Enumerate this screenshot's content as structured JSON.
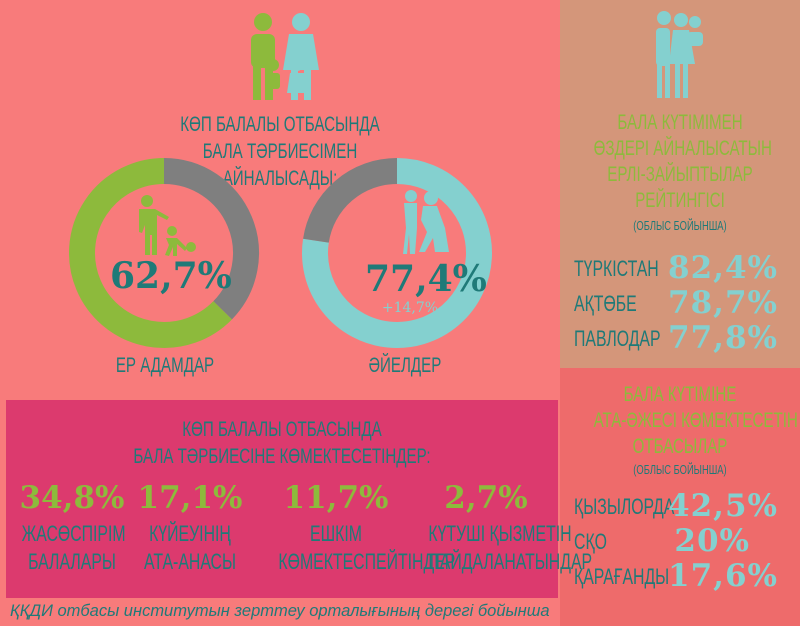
{
  "main": {
    "title_lines": [
      "КӨП БАЛАЛЫ ОТБАСЫНДА",
      "БАЛА ТӘРБИЕСІМЕН",
      "АЙНАЛЫСАДЫ:"
    ],
    "men": {
      "value": "62,7%",
      "label": "ЕР АДАМДАР"
    },
    "women": {
      "value": "77,4%",
      "delta": "+14,7%",
      "label": "ӘЙЕЛДЕР"
    },
    "icons": [
      "family-icon",
      "father-child-football-icon",
      "mother-child-icon"
    ]
  },
  "chart_data": [
    {
      "type": "pie",
      "donut": true,
      "label": "ЕР АДАМДАР",
      "values": [
        62.7,
        37.3
      ],
      "colors": [
        "#8dba3c",
        "#7f7f7f"
      ]
    },
    {
      "type": "pie",
      "donut": true,
      "label": "ӘЙЕЛДЕР",
      "values": [
        77.4,
        22.6
      ],
      "colors": [
        "#84d0cf",
        "#7f7f7f"
      ]
    }
  ],
  "rating": {
    "title_lines": [
      "БАЛА КҮТІМІМЕН",
      "ӨЗДЕРІ АЙНАЛЫСАТЫН",
      "ЕРЛІ-ЗАЙЫПТЫЛАР",
      "РЕЙТИНГІСІ"
    ],
    "subtitle": "(ОБЛЫС БОЙЫНША)",
    "rows": [
      {
        "region": "ТҮРКІСТАН",
        "value": "82,4%"
      },
      {
        "region": "АҚТӨБЕ",
        "value": "78,7%"
      },
      {
        "region": "ПАВЛОДАР",
        "value": "77,8%"
      }
    ]
  },
  "grandparents": {
    "title_lines": [
      "БАЛА КҮТІМІНЕ",
      "АТА-ӘЖЕСІ КӨМЕКТЕСЕТІН",
      "ОТБАСЫЛАР"
    ],
    "subtitle": "(ОБЛЫС БОЙЫНША)",
    "rows": [
      {
        "region": "ҚЫЗЫЛОРДА",
        "value": "42,5%"
      },
      {
        "region": "СҚО",
        "value": "20%"
      },
      {
        "region": "ҚАРАҒАНДЫ",
        "value": "17,6%"
      }
    ]
  },
  "helpers": {
    "title_lines": [
      "КӨП БАЛАЛЫ ОТБАСЫНДА",
      "БАЛА ТӘРБИЕСІНЕ КӨМЕКТЕСЕТІНДЕР:"
    ],
    "items": [
      {
        "value": "34,8%",
        "label_lines": [
          "ЖАСӨСПІРІМ",
          "БАЛАЛАРЫ"
        ]
      },
      {
        "value": "17,1%",
        "label_lines": [
          "КҮЙЕУІНІҢ",
          "АТА-АНАСЫ"
        ]
      },
      {
        "value": "11,7%",
        "label_lines": [
          "ЕШКІМ",
          "КӨМЕКТЕСПЕЙТІНДЕР"
        ]
      },
      {
        "value": "2,7%",
        "label_lines": [
          "КҮТУШІ ҚЫЗМЕТІН",
          "ПАЙДАЛАНАТЫНДАР"
        ]
      }
    ]
  },
  "footer": {
    "source": "ҚҚДИ отбасы институтын зерттеу орталығының дерегі бойынша"
  }
}
